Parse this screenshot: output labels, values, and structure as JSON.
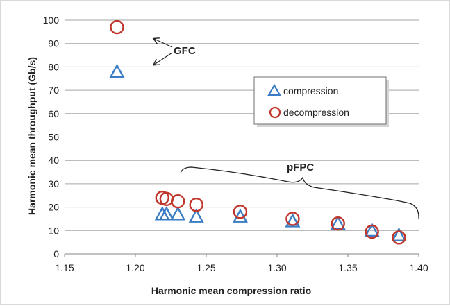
{
  "chart_data": {
    "type": "scatter",
    "title": "",
    "xlabel": "Harmonic mean compression ratio",
    "ylabel": "Harmonic mean throughput (Gb/s)",
    "xlim": [
      1.15,
      1.4
    ],
    "ylim": [
      0,
      100
    ],
    "x_ticks": [
      "1.15",
      "1.20",
      "1.25",
      "1.30",
      "1.35",
      "1.40"
    ],
    "y_ticks": [
      "0",
      "10",
      "20",
      "30",
      "40",
      "50",
      "60",
      "70",
      "80",
      "90",
      "100"
    ],
    "grid": "horizontal",
    "legend_position": "right",
    "series": [
      {
        "name": "compression",
        "marker": "triangle",
        "color": "#3A7DC4",
        "points": [
          {
            "x": 1.187,
            "y": 78
          },
          {
            "x": 1.219,
            "y": 17
          },
          {
            "x": 1.222,
            "y": 17
          },
          {
            "x": 1.23,
            "y": 17
          },
          {
            "x": 1.243,
            "y": 16
          },
          {
            "x": 1.274,
            "y": 16
          },
          {
            "x": 1.311,
            "y": 14
          },
          {
            "x": 1.343,
            "y": 13
          },
          {
            "x": 1.367,
            "y": 10
          },
          {
            "x": 1.386,
            "y": 8
          }
        ]
      },
      {
        "name": "decompression",
        "marker": "circle",
        "color": "#C0362C",
        "points": [
          {
            "x": 1.187,
            "y": 97
          },
          {
            "x": 1.219,
            "y": 24
          },
          {
            "x": 1.222,
            "y": 23.5
          },
          {
            "x": 1.23,
            "y": 22.5
          },
          {
            "x": 1.243,
            "y": 21
          },
          {
            "x": 1.274,
            "y": 18
          },
          {
            "x": 1.311,
            "y": 15
          },
          {
            "x": 1.343,
            "y": 13
          },
          {
            "x": 1.367,
            "y": 9.5
          },
          {
            "x": 1.386,
            "y": 7
          }
        ]
      }
    ],
    "annotations": [
      {
        "id": "gfc",
        "text": "GFC"
      },
      {
        "id": "pfpc",
        "text": "pFPC"
      }
    ]
  }
}
